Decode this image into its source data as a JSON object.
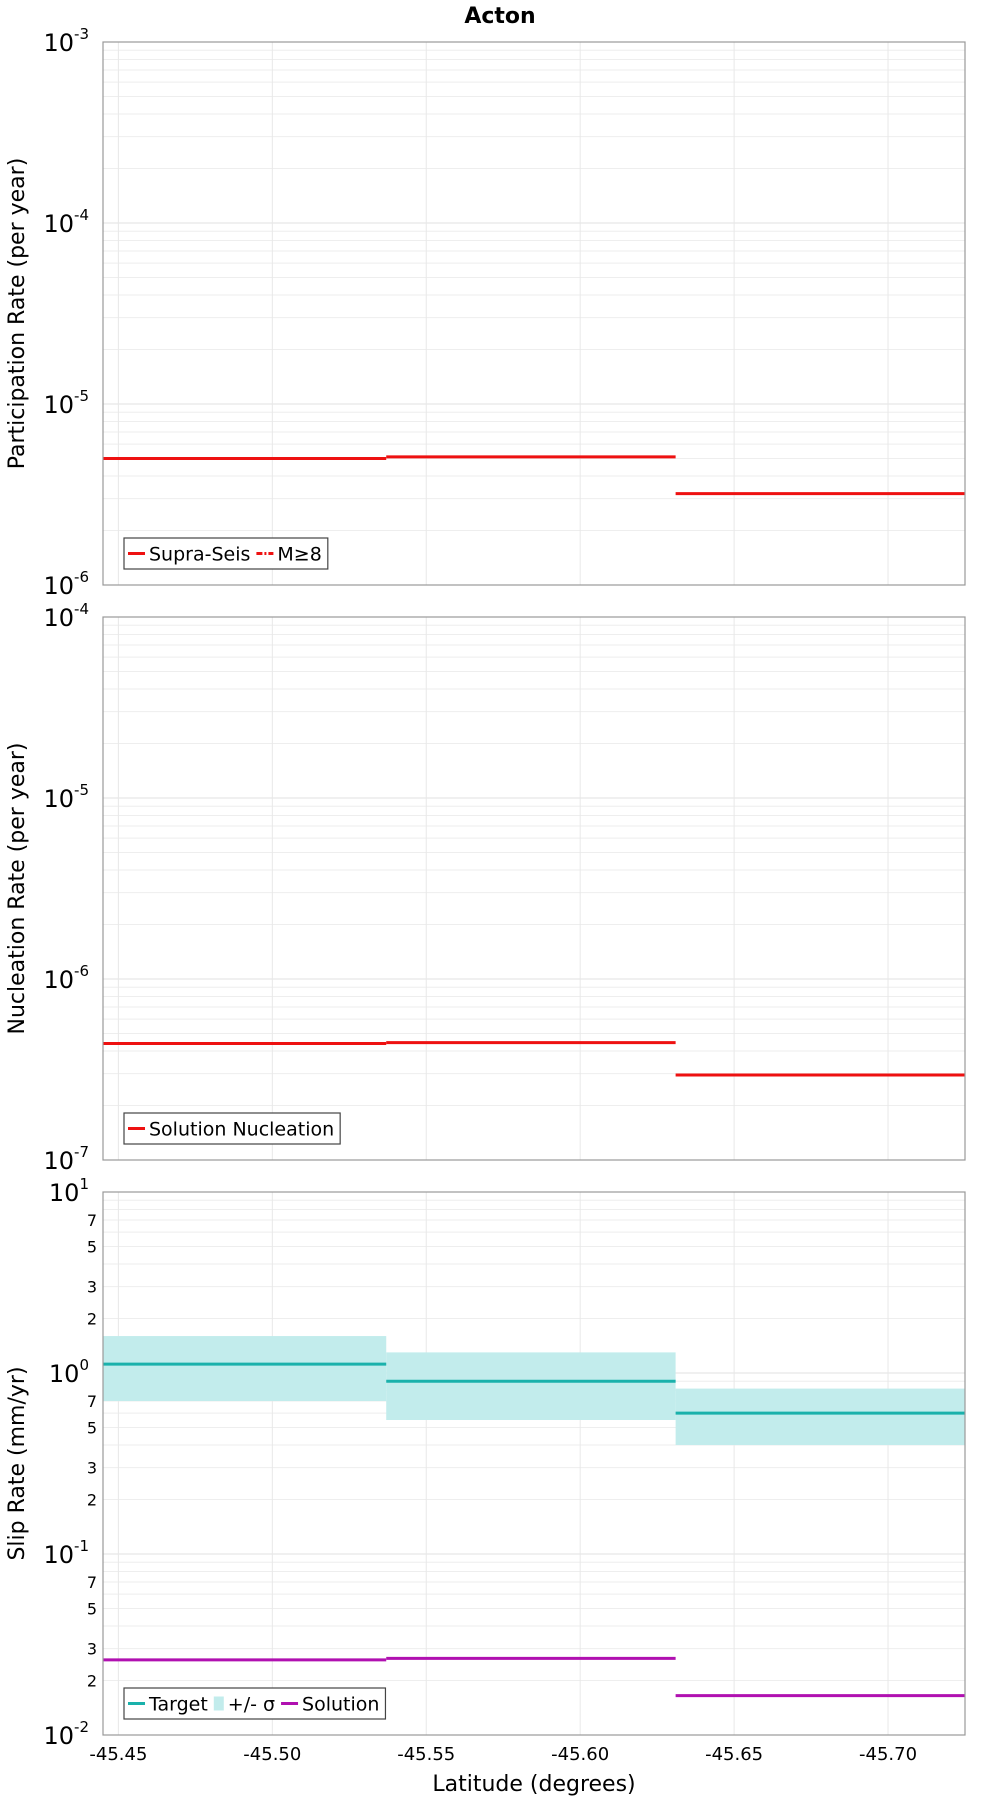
{
  "chart_data": [
    {
      "type": "line",
      "title": "Acton",
      "ylabel": "Participation Rate (per year)",
      "xlabel": "",
      "yscale": "log",
      "ylim": [
        1e-06,
        0.001
      ],
      "xlim": [
        -45.445,
        -45.725
      ],
      "xticks": [
        -45.45,
        -45.5,
        -45.55,
        -45.6,
        -45.65,
        -45.7
      ],
      "yticks": [
        {
          "base": "10",
          "exp": "-3",
          "value": 0.001
        },
        {
          "base": "10",
          "exp": "-4",
          "value": 0.0001
        },
        {
          "base": "10",
          "exp": "-5",
          "value": 1e-05
        },
        {
          "base": "10",
          "exp": "-6",
          "value": 1e-06
        }
      ],
      "grid": true,
      "legend_position": "bottom-left",
      "segments_x": [
        [
          -45.445,
          -45.537
        ],
        [
          -45.537,
          -45.631
        ],
        [
          -45.631,
          -45.725
        ]
      ],
      "series": [
        {
          "name": "Supra-Seis",
          "color": "#ee1111",
          "style": "solid",
          "values": [
            5e-06,
            5.1e-06,
            3.2e-06
          ]
        },
        {
          "name": "M≥8",
          "color": "#ee1111",
          "style": "dashdot",
          "values": []
        }
      ]
    },
    {
      "type": "line",
      "title": "",
      "ylabel": "Nucleation Rate (per year)",
      "xlabel": "",
      "yscale": "log",
      "ylim": [
        1e-07,
        0.0001
      ],
      "xlim": [
        -45.445,
        -45.725
      ],
      "yticks": [
        {
          "base": "10",
          "exp": "-4",
          "value": 0.0001
        },
        {
          "base": "10",
          "exp": "-5",
          "value": 1e-05
        },
        {
          "base": "10",
          "exp": "-6",
          "value": 1e-06
        },
        {
          "base": "10",
          "exp": "-7",
          "value": 1e-07
        }
      ],
      "grid": true,
      "legend_position": "bottom-left",
      "segments_x": [
        [
          -45.445,
          -45.537
        ],
        [
          -45.537,
          -45.631
        ],
        [
          -45.631,
          -45.725
        ]
      ],
      "series": [
        {
          "name": "Solution Nucleation",
          "color": "#ee1111",
          "style": "solid",
          "values": [
            4.4e-07,
            4.45e-07,
            2.95e-07
          ]
        }
      ]
    },
    {
      "type": "line",
      "title": "",
      "ylabel": "Slip Rate (mm/yr)",
      "xlabel": "Latitude (degrees)",
      "yscale": "log",
      "ylim": [
        0.01,
        10
      ],
      "xlim": [
        -45.445,
        -45.725
      ],
      "xticks": [
        -45.45,
        -45.5,
        -45.55,
        -45.6,
        -45.65,
        -45.7
      ],
      "yticks": [
        {
          "base": "10",
          "exp": "1",
          "value": 10
        },
        {
          "base": "10",
          "exp": "0",
          "value": 1
        },
        {
          "base": "10",
          "exp": "-1",
          "value": 0.1
        },
        {
          "base": "10",
          "exp": "-2",
          "value": 0.01
        }
      ],
      "yminor_labels": [
        {
          "label": "7",
          "value": 7
        },
        {
          "label": "5",
          "value": 5
        },
        {
          "label": "3",
          "value": 3
        },
        {
          "label": "2",
          "value": 2
        },
        {
          "label": "7",
          "value": 0.7
        },
        {
          "label": "5",
          "value": 0.5
        },
        {
          "label": "3",
          "value": 0.3
        },
        {
          "label": "2",
          "value": 0.2
        },
        {
          "label": "7",
          "value": 0.07
        },
        {
          "label": "5",
          "value": 0.05
        },
        {
          "label": "3",
          "value": 0.03
        },
        {
          "label": "2",
          "value": 0.02
        }
      ],
      "grid": true,
      "legend_position": "bottom-left",
      "segments_x": [
        [
          -45.445,
          -45.537
        ],
        [
          -45.537,
          -45.631
        ],
        [
          -45.631,
          -45.725
        ]
      ],
      "series": [
        {
          "name": "Target",
          "color": "#1ab1ab",
          "style": "solid",
          "values": [
            1.12,
            0.9,
            0.6
          ]
        },
        {
          "name": "+/- σ",
          "color": "#c2ecec",
          "style": "band",
          "lower": [
            0.7,
            0.55,
            0.4
          ],
          "upper": [
            1.6,
            1.3,
            0.82
          ]
        },
        {
          "name": "Solution",
          "color": "#b010b0",
          "style": "solid",
          "values": [
            0.026,
            0.0265,
            0.0165
          ]
        }
      ]
    }
  ]
}
